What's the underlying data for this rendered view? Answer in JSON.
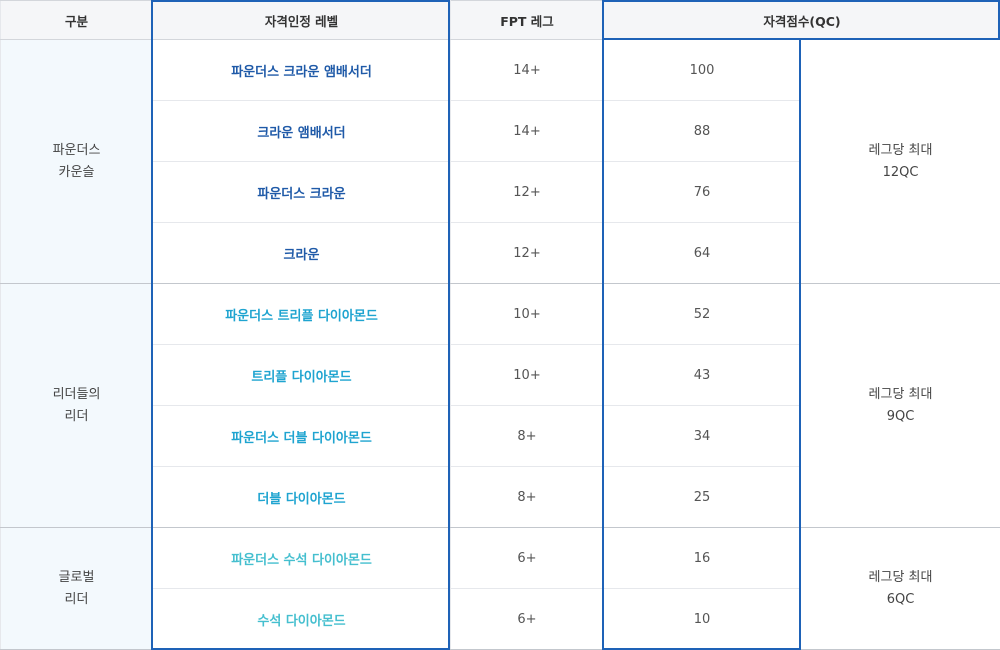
{
  "header": {
    "category": "구분",
    "level": "자격인정 레벨",
    "fpt_leg": "FPT 레그",
    "qc": "자격점수(QC)"
  },
  "groups": [
    {
      "category_line1": "파운더스",
      "category_line2": "카운슬",
      "max_line1": "레그당 최대",
      "max_line2": "12QC",
      "rows": [
        {
          "level": "파운더스 크라운 앰배서더",
          "leg": "14+",
          "qc": "100"
        },
        {
          "level": "크라운 앰배서더",
          "leg": "14+",
          "qc": "88"
        },
        {
          "level": "파운더스 크라운",
          "leg": "12+",
          "qc": "76"
        },
        {
          "level": "크라운",
          "leg": "12+",
          "qc": "64"
        }
      ]
    },
    {
      "category_line1": "리더들의",
      "category_line2": "리더",
      "max_line1": "레그당 최대",
      "max_line2": "9QC",
      "rows": [
        {
          "level": "파운더스 트리플 다이아몬드",
          "leg": "10+",
          "qc": "52"
        },
        {
          "level": "트리플 다이아몬드",
          "leg": "10+",
          "qc": "43"
        },
        {
          "level": "파운더스 더블 다이아몬드",
          "leg": "8+",
          "qc": "34"
        },
        {
          "level": "더블 다이아몬드",
          "leg": "8+",
          "qc": "25"
        }
      ]
    },
    {
      "category_line1": "글로벌",
      "category_line2": "리더",
      "max_line1": "레그당 최대",
      "max_line2": "6QC",
      "rows": [
        {
          "level": "파운더스 수석 다이아몬드",
          "leg": "6+",
          "qc": "16"
        },
        {
          "level": "수석 다이아몬드",
          "leg": "6+",
          "qc": "10"
        }
      ]
    }
  ],
  "colors": {
    "highlight_border": "#1e62b7",
    "level_tier_1": "#1f5aa8",
    "level_tier_2": "#1fa4d0",
    "level_tier_3": "#45bfcf",
    "category_bg": "#f3f9fd",
    "header_bg": "#f5f6f8"
  }
}
